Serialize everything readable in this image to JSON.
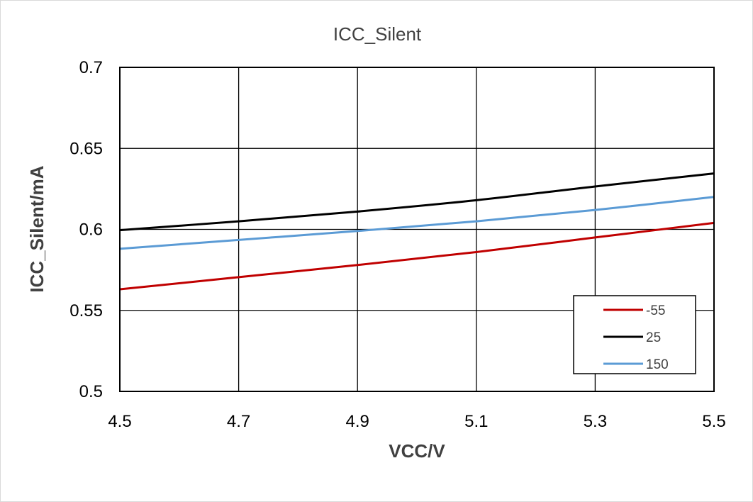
{
  "chart_data": {
    "type": "line",
    "title": "ICC_Silent",
    "xlabel": "VCC/V",
    "ylabel": "ICC_Silent/mA",
    "xlim": [
      4.5,
      5.5
    ],
    "ylim": [
      0.5,
      0.7
    ],
    "x_ticks": [
      "4.5",
      "4.7",
      "4.9",
      "5.1",
      "5.3",
      "5.5"
    ],
    "y_ticks": [
      "0.5",
      "0.55",
      "0.6",
      "0.65",
      "0.7"
    ],
    "grid": true,
    "legend_position": "bottom-right",
    "x": [
      4.5,
      4.7,
      4.9,
      5.1,
      5.3,
      5.5
    ],
    "series": [
      {
        "name": "-55",
        "color": "#c00000",
        "values": [
          0.563,
          0.5705,
          0.578,
          0.586,
          0.595,
          0.604
        ]
      },
      {
        "name": "25",
        "color": "#000000",
        "values": [
          0.5995,
          0.605,
          0.611,
          0.618,
          0.6265,
          0.6345
        ]
      },
      {
        "name": "150",
        "color": "#5b9bd5",
        "values": [
          0.588,
          0.5935,
          0.599,
          0.605,
          0.612,
          0.62
        ]
      }
    ]
  }
}
